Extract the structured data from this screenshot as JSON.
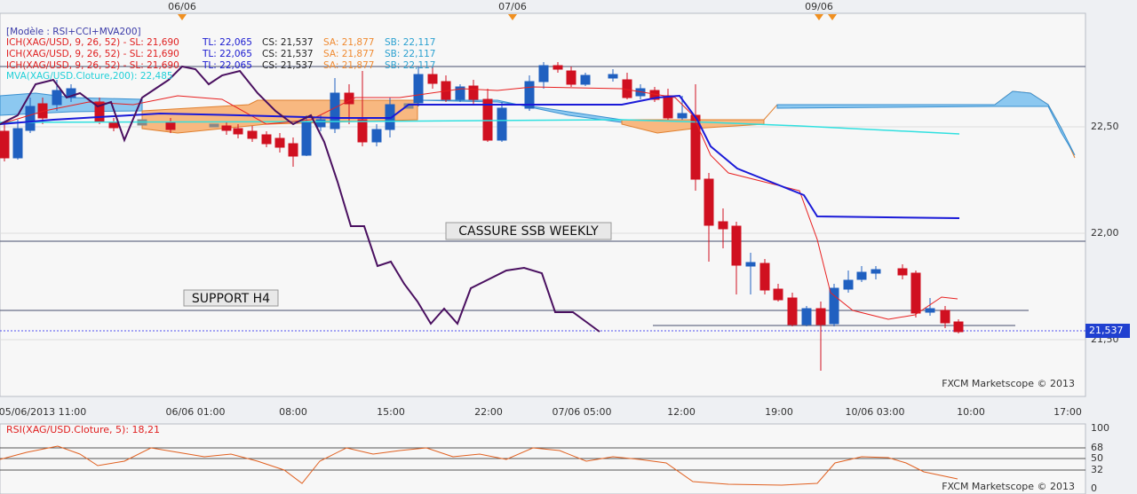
{
  "top_dates": [
    "06/06",
    "07/06",
    "09/06"
  ],
  "legend": [
    [
      "[Modèle : RSI+CCI+MVA200]"
    ],
    [
      "ICH(XAG/USD, 9, 26, 52) -  SL: 21,690",
      "TL: 22,065",
      "CS: 21,537",
      "SA: 21,877",
      "SB: 22,117"
    ],
    [
      "ICH(XAG/USD, 9, 26, 52) -  SL: 21,690",
      "TL: 22,065",
      "CS: 21,537",
      "SA: 21,877",
      "SB: 22,117"
    ],
    [
      "ICH(XAG/USD, 9, 26, 52) -  SL: 21,690",
      "TL: 22,065",
      "CS: 21,537",
      "SA: 21,877",
      "SB: 22,117"
    ],
    [
      "MVA(XAG/USD.Cloture,200): 22,485"
    ]
  ],
  "annotations": [
    "CASSURE SSB WEEKLY",
    "SUPPORT H4"
  ],
  "price_axis": [
    "22,50",
    "22,00",
    "21,50"
  ],
  "current_price": "21,537",
  "time_axis": [
    "05/06/2013 11:00",
    "06/06 01:00",
    "08:00",
    "15:00",
    "22:00",
    "07/06 05:00",
    "12:00",
    "19:00",
    "10/06 03:00",
    "10:00",
    "17:00"
  ],
  "watermark": "FXCM Marketscope © 2013",
  "rsi": {
    "legend": "RSI(XAG/USD.Cloture, 5): 18,21",
    "axis": [
      "100",
      "68",
      "50",
      "32",
      "0"
    ],
    "watermark": "FXCM Marketscope © 2013"
  }
}
